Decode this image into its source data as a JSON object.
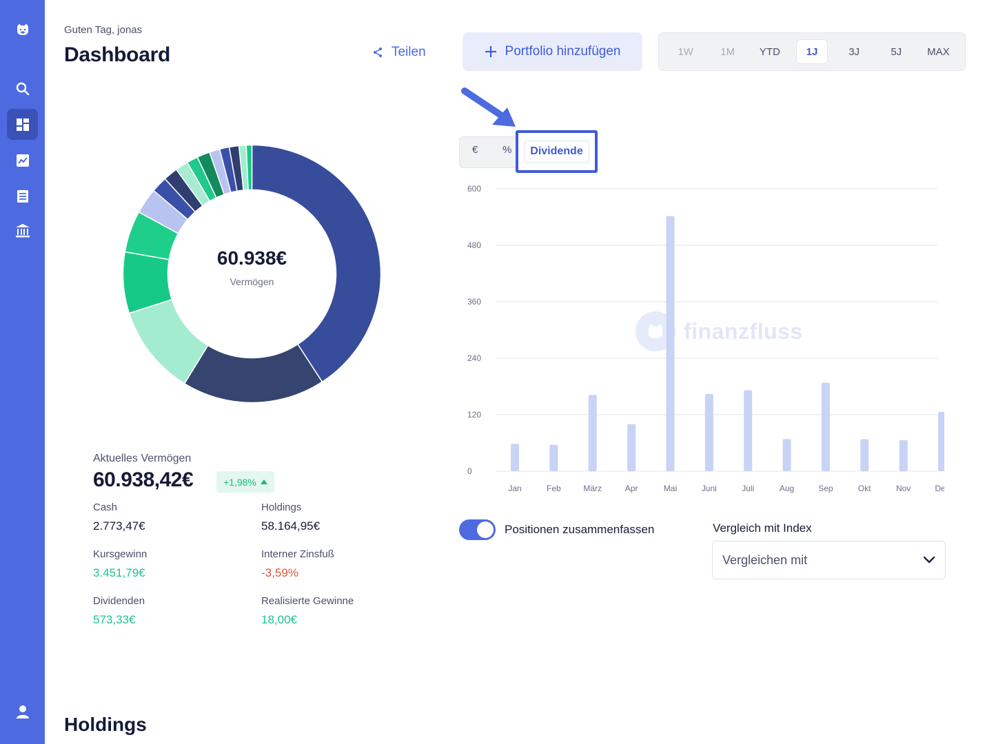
{
  "header": {
    "greeting": "Guten Tag, jonas",
    "title": "Dashboard",
    "share_label": "Teilen",
    "add_portfolio_label": "Portfolio hinzufügen",
    "ranges": [
      "1W",
      "1M",
      "YTD",
      "1J",
      "3J",
      "5J",
      "MAX"
    ],
    "selected_range": "1J"
  },
  "sidebar": {
    "items": [
      "logo-icon",
      "search-icon",
      "dashboard-icon",
      "chart-icon",
      "list-icon",
      "bank-icon",
      "user-icon"
    ],
    "active": "dashboard-icon",
    "color": "#4e6ae0"
  },
  "donut": {
    "value": "60.938€",
    "label": "Vermögen",
    "slice_colors": [
      "#384c9c",
      "#36456f",
      "#a3ecd0",
      "#16c987",
      "#1ecf8b",
      "#b8c3f0",
      "#3a4fa8",
      "#2f3e6e",
      "#a8ebd0",
      "#1fc98a",
      "#128a5c",
      "#b8c3f0",
      "#3a4fa8",
      "#2f3e6e",
      "#a3ecd0",
      "#16c987"
    ]
  },
  "stats": {
    "title": "Aktuelles Vermögen",
    "total": "60.938,42€",
    "change": "+1,98%",
    "items": [
      {
        "label": "Cash",
        "value": "2.773,47€"
      },
      {
        "label": "Holdings",
        "value": "58.164,95€"
      },
      {
        "label": "Kursgewinn",
        "value": "3.451,79€"
      },
      {
        "label": "Interner Zinsfuß",
        "value": "-3,59%"
      },
      {
        "label": "Dividenden",
        "value": "573,33€"
      },
      {
        "label": "Realisierte Gewinne",
        "value": "18,00€"
      }
    ]
  },
  "chart_modes": {
    "euro": "€",
    "percent": "%",
    "dividend": "Dividende"
  },
  "watermark": "finanzfluss",
  "chart_data": {
    "type": "bar",
    "categories": [
      "Jan",
      "Feb",
      "März",
      "Apr",
      "Mai",
      "Juni",
      "Juli",
      "Aug",
      "Sep",
      "Okt",
      "Nov",
      "Dez"
    ],
    "values": [
      58,
      56,
      162,
      100,
      542,
      164,
      172,
      68,
      188,
      68,
      66,
      126
    ],
    "y_ticks": [
      "0",
      "120",
      "240",
      "360",
      "480",
      "600"
    ],
    "ylim": [
      0,
      600
    ],
    "grid": true,
    "bar_color": "#c9d3f5"
  },
  "options": {
    "toggle_label": "Positionen zusammenfassen",
    "toggle_on": true,
    "compare_label": "Vergleich mit Index",
    "compare_placeholder": "Vergleichen mit"
  },
  "holdings_title": "Holdings"
}
